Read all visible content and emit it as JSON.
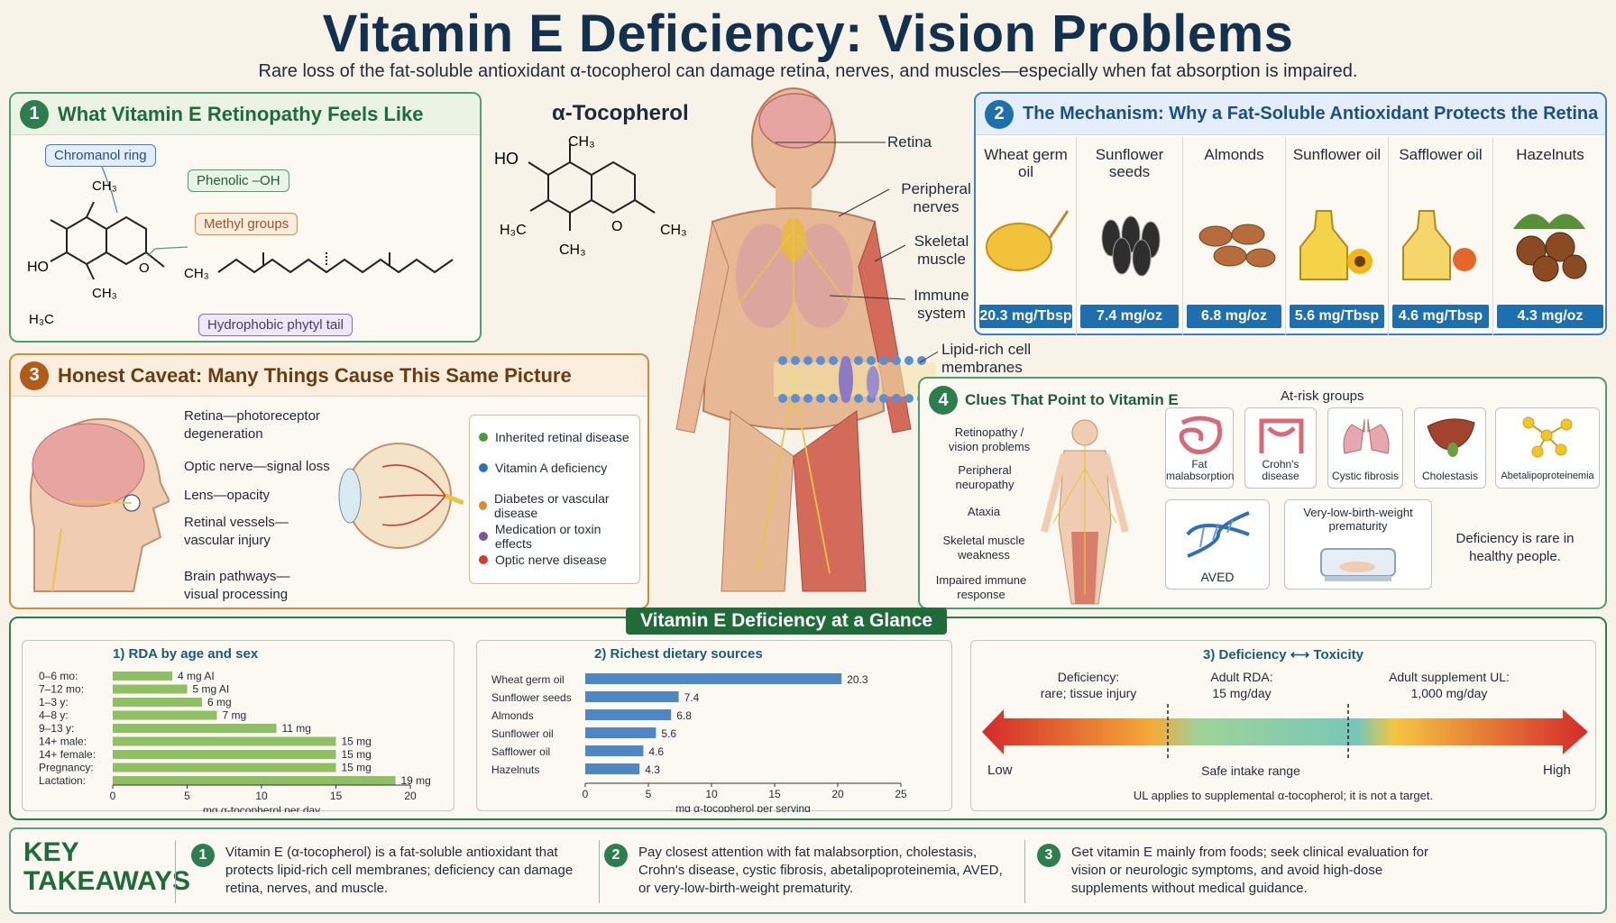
{
  "header": {
    "title": "Vitamin E Deficiency: Vision Problems",
    "subtitle": "Rare loss of the fat-soluble antioxidant α-tocopherol can damage retina, nerves, and muscles—especially when fat absorption is impaired."
  },
  "panel1": {
    "number": "1",
    "title": "What Vitamin E Retinopathy Feels Like",
    "labels": {
      "chromanol": "Chromanol ring",
      "phenolic": "Phenolic –OH",
      "methyl": "Methyl groups",
      "phytyl": "Hydrophobic phytyl tail",
      "ho": "HO",
      "ch3": "CH",
      "h3c": "H",
      "o": "O"
    }
  },
  "center": {
    "molecule_title": "α-Tocopherol",
    "body_labels": {
      "retina": "Retina",
      "nerves": "Peripheral nerves",
      "muscle": "Skeletal muscle",
      "immune": "Immune system",
      "membranes": "Lipid-rich cell membranes"
    }
  },
  "panel2": {
    "number": "2",
    "title": "The Mechanism: Why a Fat-Soluble Antioxidant Protects the Retina",
    "foods": [
      {
        "name": "Wheat germ oil",
        "value": "20.3 mg/Tbsp"
      },
      {
        "name": "Sunflower seeds",
        "value": "7.4 mg/oz"
      },
      {
        "name": "Almonds",
        "value": "6.8 mg/oz"
      },
      {
        "name": "Sunflower oil",
        "value": "5.6 mg/Tbsp"
      },
      {
        "name": "Safflower oil",
        "value": "4.6 mg/Tbsp"
      },
      {
        "name": "Hazelnuts",
        "value": "4.3 mg/oz"
      }
    ]
  },
  "panel3": {
    "number": "3",
    "title": "Honest Caveat: Many Things Cause  This Same Picture",
    "head_labels": [
      "Retina—photoreceptor degeneration",
      "Optic nerve—signal loss",
      "Lens—opacity",
      "Retinal vessels—vascular injury",
      "Brain pathways—visual processing"
    ],
    "causes": [
      {
        "text": "Inherited retinal disease",
        "color": "#4e9a3b"
      },
      {
        "text": "Vitamin A deficiency",
        "color": "#2f6fb3"
      },
      {
        "text": "Diabetes or vascular disease",
        "color": "#e08a2a"
      },
      {
        "text": "Medication or toxin effects",
        "color": "#7a55a3"
      },
      {
        "text": "Optic nerve disease",
        "color": "#d43c32"
      }
    ]
  },
  "panel4": {
    "number": "4",
    "title": "Clues That Point to Vitamin E",
    "clues": [
      "Retinopathy / vision problems",
      "Peripheral neuropathy",
      "Ataxia",
      "Skeletal muscle weakness",
      "Impaired immune response"
    ],
    "risk_title": "At-risk groups",
    "risk_groups": [
      "Fat malabsorption",
      "Crohn's disease",
      "Cystic fibrosis",
      "Cholestasis",
      "Abetalipoproteinemia",
      "AVED",
      "Very-low-birth-weight prematurity"
    ],
    "note": "Deficiency is rare in healthy people."
  },
  "glance": {
    "title": "Vitamin E Deficiency at a Glance"
  },
  "chart_data": [
    {
      "type": "bar",
      "title": "1) RDA by age and sex",
      "xlabel": "mg α-tocopherol per day",
      "categories": [
        "0–6 mo:",
        "7–12 mo:",
        "1–3 y:",
        "4–8 y:",
        "9–13 y:",
        "14+ male:",
        "14+ female:",
        "Pregnancy:",
        "Lactation:"
      ],
      "values": [
        4,
        5,
        6,
        7,
        11,
        15,
        15,
        15,
        19
      ],
      "value_labels": [
        "4 mg AI",
        "5 mg AI",
        "6 mg",
        "7 mg",
        "11 mg",
        "15 mg",
        "15 mg",
        "15 mg",
        "19 mg"
      ],
      "xlim": [
        0,
        20
      ],
      "xticks": [
        "0",
        "5",
        "10",
        "15",
        "20"
      ],
      "color": "#8fbf63"
    },
    {
      "type": "bar",
      "title": "2) Richest dietary sources",
      "xlabel": "mg α-tocopherol per serving",
      "categories": [
        "Wheat germ oil",
        "Sunflower seeds",
        "Almonds",
        "Sunflower oil",
        "Safflower oil",
        "Hazelnuts"
      ],
      "values": [
        20.3,
        7.4,
        6.8,
        5.6,
        4.6,
        4.3
      ],
      "xlim": [
        0,
        25
      ],
      "xticks": [
        "0",
        "5",
        "10",
        "15",
        "20",
        "25"
      ],
      "color": "#4f86c6"
    }
  ],
  "toxicity": {
    "title": "3) Deficiency",
    "title_arrow": "⟷",
    "title_end": "Toxicity",
    "deficiency": "Deficiency:",
    "deficiency_sub": "rare; tissue injury",
    "rda": "Adult RDA:",
    "rda_sub": "15 mg/day",
    "ul": "Adult supplement UL:",
    "ul_sub": "1,000 mg/day",
    "low": "Low",
    "safe": "Safe intake range",
    "high": "High",
    "note": "UL applies to supplemental α-tocopherol; it is not a target."
  },
  "takeaways": {
    "heading": "KEY TAKEAWAYS",
    "items": [
      {
        "n": "1",
        "text": "Vitamin E (α-tocopherol) is a fat-soluble antioxidant that protects lipid-rich cell membranes; deficiency can damage retina, nerves, and muscle."
      },
      {
        "n": "2",
        "text": "Pay closest attention with fat malabsorption, cholestasis, Crohn's disease, cystic fibrosis, abetalipoproteinemia, AVED, or very-low-birth-weight prematurity."
      },
      {
        "n": "3",
        "text": "Get vitamin E mainly from foods; seek clinical evaluation for vision or neurologic symptoms, and avoid high-dose supplements without medical guidance."
      }
    ]
  }
}
